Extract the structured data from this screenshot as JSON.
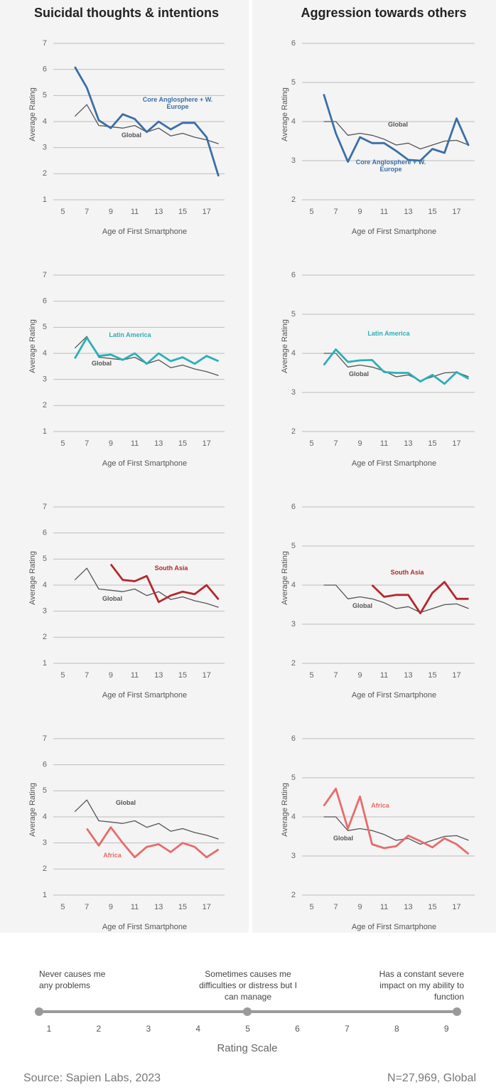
{
  "chart_data": [
    {
      "type": "line",
      "title": "Suicidal thoughts & intentions",
      "xlabel": "Age of First Smartphone",
      "ylabel": "Average Rating",
      "x": [
        6,
        7,
        8,
        9,
        10,
        11,
        12,
        13,
        14,
        15,
        16,
        17,
        18
      ],
      "xlim": [
        4.2,
        18.5
      ],
      "xticks": [
        5,
        7,
        9,
        11,
        13,
        15,
        17
      ],
      "ylim": [
        1,
        7
      ],
      "yticks": [
        1,
        2,
        3,
        4,
        5,
        6,
        7
      ],
      "grid": true,
      "series": [
        {
          "name": "Global",
          "color": "#555555",
          "values": [
            4.2,
            4.65,
            3.85,
            3.8,
            3.75,
            3.85,
            3.6,
            3.75,
            3.45,
            3.55,
            3.4,
            3.3,
            3.15
          ]
        },
        {
          "name": "Core Anglosphere + W. Europe",
          "color": "#3b6fa6",
          "values": [
            6.1,
            5.3,
            4.05,
            3.75,
            4.28,
            4.1,
            3.6,
            4.0,
            3.7,
            3.95,
            3.95,
            3.4,
            1.9
          ]
        }
      ]
    },
    {
      "type": "line",
      "title": "Aggression towards others",
      "xlabel": "Age of First Smartphone",
      "ylabel": "Average Rating",
      "x": [
        6,
        7,
        8,
        9,
        10,
        11,
        12,
        13,
        14,
        15,
        16,
        17,
        18
      ],
      "xlim": [
        4.2,
        18.5
      ],
      "xticks": [
        5,
        7,
        9,
        11,
        13,
        15,
        17
      ],
      "ylim": [
        2,
        6
      ],
      "yticks": [
        2,
        3,
        4,
        5,
        6
      ],
      "grid": true,
      "series": [
        {
          "name": "Global",
          "color": "#555555",
          "values": [
            4.0,
            4.0,
            3.65,
            3.7,
            3.65,
            3.55,
            3.4,
            3.45,
            3.3,
            3.4,
            3.5,
            3.52,
            3.4
          ]
        },
        {
          "name": "Core Anglosphere + W. Europe",
          "color": "#3b6fa6",
          "values": [
            4.7,
            3.7,
            2.97,
            3.6,
            3.45,
            3.45,
            3.25,
            3.02,
            3.0,
            3.3,
            3.2,
            4.08,
            3.38
          ]
        }
      ]
    },
    {
      "type": "line",
      "xlabel": "Age of First Smartphone",
      "ylabel": "Average Rating",
      "x": [
        6,
        7,
        8,
        9,
        10,
        11,
        12,
        13,
        14,
        15,
        16,
        17,
        18
      ],
      "xlim": [
        4.2,
        18.5
      ],
      "xticks": [
        5,
        7,
        9,
        11,
        13,
        15,
        17
      ],
      "ylim": [
        1,
        7
      ],
      "yticks": [
        1,
        2,
        3,
        4,
        5,
        6,
        7
      ],
      "grid": true,
      "series": [
        {
          "name": "Global",
          "color": "#555555",
          "values": [
            4.2,
            4.65,
            3.85,
            3.8,
            3.75,
            3.85,
            3.6,
            3.75,
            3.45,
            3.55,
            3.4,
            3.3,
            3.15
          ]
        },
        {
          "name": "Latin America",
          "color": "#2ab0b8",
          "values": [
            3.8,
            4.6,
            3.9,
            3.95,
            3.75,
            4.0,
            3.6,
            4.0,
            3.7,
            3.85,
            3.6,
            3.9,
            3.7
          ]
        }
      ]
    },
    {
      "type": "line",
      "xlabel": "Age of First Smartphone",
      "ylabel": "Average Rating",
      "x": [
        6,
        7,
        8,
        9,
        10,
        11,
        12,
        13,
        14,
        15,
        16,
        17,
        18
      ],
      "xlim": [
        4.2,
        18.5
      ],
      "xticks": [
        5,
        7,
        9,
        11,
        13,
        15,
        17
      ],
      "ylim": [
        2,
        6
      ],
      "yticks": [
        2,
        3,
        4,
        5,
        6
      ],
      "grid": true,
      "series": [
        {
          "name": "Global",
          "color": "#555555",
          "values": [
            4.0,
            4.0,
            3.65,
            3.7,
            3.65,
            3.55,
            3.4,
            3.45,
            3.3,
            3.4,
            3.5,
            3.52,
            3.4
          ]
        },
        {
          "name": "Latin America",
          "color": "#2ab0b8",
          "values": [
            3.7,
            4.1,
            3.78,
            3.82,
            3.83,
            3.52,
            3.5,
            3.5,
            3.28,
            3.45,
            3.22,
            3.52,
            3.35
          ]
        }
      ]
    },
    {
      "type": "line",
      "xlabel": "Age of First Smartphone",
      "ylabel": "Average Rating",
      "x": [
        6,
        7,
        8,
        9,
        10,
        11,
        12,
        13,
        14,
        15,
        16,
        17,
        18
      ],
      "xlim": [
        4.2,
        18.5
      ],
      "xticks": [
        5,
        7,
        9,
        11,
        13,
        15,
        17
      ],
      "ylim": [
        1,
        7
      ],
      "yticks": [
        1,
        2,
        3,
        4,
        5,
        6,
        7
      ],
      "grid": true,
      "series": [
        {
          "name": "Global",
          "color": "#555555",
          "values": [
            4.2,
            4.65,
            3.85,
            3.8,
            3.75,
            3.85,
            3.6,
            3.75,
            3.45,
            3.55,
            3.4,
            3.3,
            3.15
          ]
        },
        {
          "name": "South Asia",
          "color": "#b5272d",
          "values": [
            null,
            null,
            null,
            4.8,
            4.2,
            4.15,
            4.35,
            3.35,
            3.6,
            3.75,
            3.65,
            4.0,
            3.45
          ]
        }
      ]
    },
    {
      "type": "line",
      "xlabel": "Age of First Smartphone",
      "ylabel": "Average Rating",
      "x": [
        6,
        7,
        8,
        9,
        10,
        11,
        12,
        13,
        14,
        15,
        16,
        17,
        18
      ],
      "xlim": [
        4.2,
        18.5
      ],
      "xticks": [
        5,
        7,
        9,
        11,
        13,
        15,
        17
      ],
      "ylim": [
        2,
        6
      ],
      "yticks": [
        2,
        3,
        4,
        5,
        6
      ],
      "grid": true,
      "series": [
        {
          "name": "Global",
          "color": "#555555",
          "values": [
            4.0,
            4.0,
            3.65,
            3.7,
            3.65,
            3.55,
            3.4,
            3.45,
            3.3,
            3.4,
            3.5,
            3.52,
            3.4
          ]
        },
        {
          "name": "South Asia",
          "color": "#b5272d",
          "values": [
            null,
            null,
            null,
            null,
            4.0,
            3.7,
            3.75,
            3.75,
            3.28,
            3.8,
            4.08,
            3.65,
            3.65
          ]
        }
      ]
    },
    {
      "type": "line",
      "xlabel": "Age of First Smartphone",
      "ylabel": "Average Rating",
      "x": [
        6,
        7,
        8,
        9,
        10,
        11,
        12,
        13,
        14,
        15,
        16,
        17,
        18
      ],
      "xlim": [
        4.2,
        18.5
      ],
      "xticks": [
        5,
        7,
        9,
        11,
        13,
        15,
        17
      ],
      "ylim": [
        1,
        7
      ],
      "yticks": [
        1,
        2,
        3,
        4,
        5,
        6,
        7
      ],
      "grid": true,
      "series": [
        {
          "name": "Global",
          "color": "#555555",
          "values": [
            4.2,
            4.65,
            3.85,
            3.8,
            3.75,
            3.85,
            3.6,
            3.75,
            3.45,
            3.55,
            3.4,
            3.3,
            3.15
          ]
        },
        {
          "name": "Africa",
          "color": "#e86b6b",
          "values": [
            null,
            3.55,
            2.9,
            3.6,
            3.0,
            2.45,
            2.85,
            2.95,
            2.65,
            3.0,
            2.85,
            2.45,
            2.75
          ]
        }
      ]
    },
    {
      "type": "line",
      "xlabel": "Age of First Smartphone",
      "ylabel": "Average Rating",
      "x": [
        6,
        7,
        8,
        9,
        10,
        11,
        12,
        13,
        14,
        15,
        16,
        17,
        18
      ],
      "xlim": [
        4.2,
        18.5
      ],
      "xticks": [
        5,
        7,
        9,
        11,
        13,
        15,
        17
      ],
      "ylim": [
        2,
        6
      ],
      "yticks": [
        2,
        3,
        4,
        5,
        6
      ],
      "grid": true,
      "series": [
        {
          "name": "Global",
          "color": "#555555",
          "values": [
            4.0,
            4.0,
            3.65,
            3.7,
            3.65,
            3.55,
            3.4,
            3.45,
            3.3,
            3.4,
            3.5,
            3.52,
            3.4
          ]
        },
        {
          "name": "Africa",
          "color": "#e86b6b",
          "values": [
            4.28,
            4.72,
            3.7,
            4.52,
            3.3,
            3.2,
            3.25,
            3.52,
            3.38,
            3.22,
            3.45,
            3.3,
            3.05
          ]
        }
      ]
    }
  ],
  "rating_scale": {
    "title": "Rating Scale",
    "ticks": [
      1,
      2,
      3,
      4,
      5,
      6,
      7,
      8,
      9
    ],
    "descriptions": [
      "Never causes me any problems",
      "Sometimes causes me difficulties or distress but I can manage",
      "Has a constant severe impact on my ability to function"
    ]
  },
  "footer": {
    "source": "Source: Sapien Labs, 2023",
    "sample": "N=27,969, Global"
  }
}
